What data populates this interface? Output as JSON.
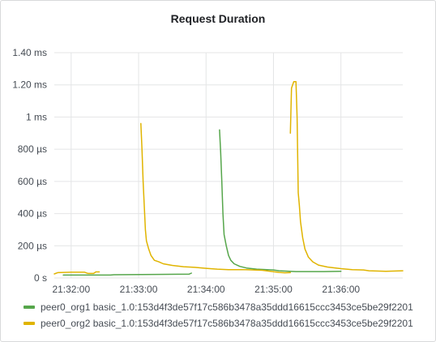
{
  "panel": {
    "title": "Request Duration"
  },
  "chart_data": {
    "type": "line",
    "title": "Request Duration",
    "xlabel": "",
    "ylabel": "",
    "y_unit": "ms",
    "ylim": [
      0,
      1.4
    ],
    "y_ticks": [
      {
        "value": 0,
        "label": "0 s"
      },
      {
        "value": 0.2,
        "label": "200 µs"
      },
      {
        "value": 0.4,
        "label": "400 µs"
      },
      {
        "value": 0.6,
        "label": "600 µs"
      },
      {
        "value": 0.8,
        "label": "800 µs"
      },
      {
        "value": 1.0,
        "label": "1 ms"
      },
      {
        "value": 1.2,
        "label": "1.20 ms"
      },
      {
        "value": 1.4,
        "label": "1.40 ms"
      }
    ],
    "xlim": [
      "21:31:45",
      "21:36:55"
    ],
    "x_ticks": [
      "21:32:00",
      "21:33:00",
      "21:34:00",
      "21:35:00",
      "21:36:00"
    ],
    "grid": true,
    "legend_position": "bottom",
    "series": [
      {
        "name": "peer0_org1 basic_1.0:153d4f3de57f17c586b3478a35ddd16615ccc3453ce5be29f2201",
        "color": "#56a64b",
        "segments": [
          [
            [
              "21:31:53",
              0.018
            ],
            [
              "21:32:35",
              0.018
            ],
            [
              "21:32:38",
              0.02
            ],
            [
              "21:33:15",
              0.022
            ],
            [
              "21:33:45",
              0.024
            ],
            [
              "21:33:47",
              0.03
            ]
          ],
          [
            [
              "21:34:12",
              0.92
            ],
            [
              "21:34:13",
              0.78
            ],
            [
              "21:34:14",
              0.6
            ],
            [
              "21:34:15",
              0.4
            ],
            [
              "21:34:16",
              0.27
            ],
            [
              "21:34:18",
              0.2
            ],
            [
              "21:34:20",
              0.14
            ],
            [
              "21:34:22",
              0.11
            ],
            [
              "21:34:25",
              0.088
            ],
            [
              "21:34:30",
              0.072
            ],
            [
              "21:34:36",
              0.062
            ],
            [
              "21:34:45",
              0.055
            ],
            [
              "21:35:00",
              0.05
            ],
            [
              "21:35:05",
              0.045
            ],
            [
              "21:35:20",
              0.04
            ],
            [
              "21:35:45",
              0.04
            ],
            [
              "21:36:00",
              0.042
            ]
          ]
        ]
      },
      {
        "name": "peer0_org2 basic_1.0:153d4f3de57f17c586b3478a35ddd16615ccc3453ce5be29f2201",
        "color": "#e0b400",
        "segments": [
          [
            [
              "21:31:45",
              0.025
            ],
            [
              "21:31:48",
              0.033
            ],
            [
              "21:32:00",
              0.036
            ],
            [
              "21:32:12",
              0.036
            ],
            [
              "21:32:15",
              0.028
            ],
            [
              "21:32:20",
              0.028
            ],
            [
              "21:32:22",
              0.038
            ],
            [
              "21:32:25",
              0.038
            ]
          ],
          [
            [
              "21:33:02",
              0.96
            ],
            [
              "21:33:03",
              0.8
            ],
            [
              "21:33:04",
              0.6
            ],
            [
              "21:33:05",
              0.45
            ],
            [
              "21:33:06",
              0.3
            ],
            [
              "21:33:07",
              0.23
            ],
            [
              "21:33:09",
              0.18
            ],
            [
              "21:33:11",
              0.14
            ],
            [
              "21:33:14",
              0.11
            ],
            [
              "21:33:18",
              0.1
            ],
            [
              "21:33:22",
              0.088
            ],
            [
              "21:33:30",
              0.078
            ],
            [
              "21:33:40",
              0.07
            ],
            [
              "21:33:50",
              0.066
            ],
            [
              "21:34:00",
              0.06
            ],
            [
              "21:34:10",
              0.055
            ],
            [
              "21:34:20",
              0.052
            ],
            [
              "21:34:35",
              0.052
            ],
            [
              "21:34:50",
              0.048
            ],
            [
              "21:35:05",
              0.035
            ],
            [
              "21:35:10",
              0.032
            ],
            [
              "21:35:15",
              0.033
            ]
          ],
          [
            [
              "21:35:15",
              0.9
            ],
            [
              "21:35:16",
              1.18
            ],
            [
              "21:35:18",
              1.22
            ],
            [
              "21:35:20",
              1.22
            ],
            [
              "21:35:21",
              1.0
            ],
            [
              "21:35:22",
              0.53
            ],
            [
              "21:35:23",
              0.45
            ],
            [
              "21:35:24",
              0.35
            ],
            [
              "21:35:26",
              0.25
            ],
            [
              "21:35:28",
              0.18
            ],
            [
              "21:35:31",
              0.13
            ],
            [
              "21:35:35",
              0.1
            ],
            [
              "21:35:40",
              0.08
            ],
            [
              "21:35:48",
              0.068
            ],
            [
              "21:36:00",
              0.058
            ],
            [
              "21:36:10",
              0.052
            ],
            [
              "21:36:20",
              0.05
            ],
            [
              "21:36:25",
              0.045
            ],
            [
              "21:36:40",
              0.042
            ],
            [
              "21:36:55",
              0.045
            ]
          ]
        ]
      }
    ]
  }
}
